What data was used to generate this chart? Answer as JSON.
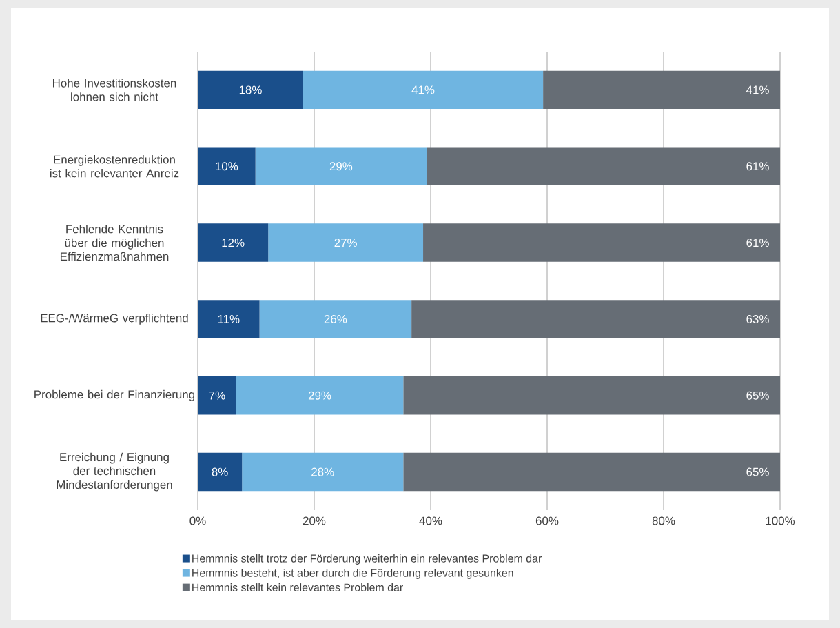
{
  "chart_data": {
    "type": "bar",
    "orientation": "horizontal",
    "stacked": true,
    "categories": [
      "Hohe Investitionskosten lohnen sich nicht",
      "Energiekostenreduktion ist kein relevanter Anreiz",
      "Fehlende Kenntnis über die möglichen Effizienzmaßnahmen",
      "EEG-/WärmeG verpflichtend",
      "Probleme bei der Finanzierung",
      "Erreichung / Eignung der technischen Mindestanforderungen"
    ],
    "series": [
      {
        "name": "Hemmnis stellt trotz der Förderung weiterhin ein relevantes Problem dar",
        "color": "#1a4f8b",
        "values": [
          18.1,
          9.9,
          12.1,
          10.6,
          6.6,
          7.6
        ],
        "value_labels": [
          "18%",
          "10%",
          "12%",
          "11%",
          "7%",
          "8%"
        ]
      },
      {
        "name": "Hemmnis besteht, ist aber durch die Förderung relevant gesunken",
        "color": "#6fb5e1",
        "values": [
          41.2,
          29.4,
          26.6,
          26.1,
          28.7,
          27.7
        ],
        "value_labels": [
          "41%",
          "29%",
          "27%",
          "26%",
          "29%",
          "28%"
        ]
      },
      {
        "name": "Hemmnis stellt kein relevantes Problem dar",
        "color": "#666d75",
        "values": [
          40.7,
          60.7,
          61.3,
          63.3,
          64.7,
          64.7
        ],
        "value_labels": [
          "41%",
          "61%",
          "61%",
          "63%",
          "65%",
          "65%"
        ]
      }
    ],
    "xlim": [
      0,
      100
    ],
    "xticks": [
      {
        "value": 0,
        "label": "0%"
      },
      {
        "value": 20,
        "label": "20%"
      },
      {
        "value": 40,
        "label": "40%"
      },
      {
        "value": 60,
        "label": "60%"
      },
      {
        "value": 80,
        "label": "80%"
      },
      {
        "value": 100,
        "label": "100%"
      }
    ],
    "grid": "x",
    "legend": "bottom"
  }
}
